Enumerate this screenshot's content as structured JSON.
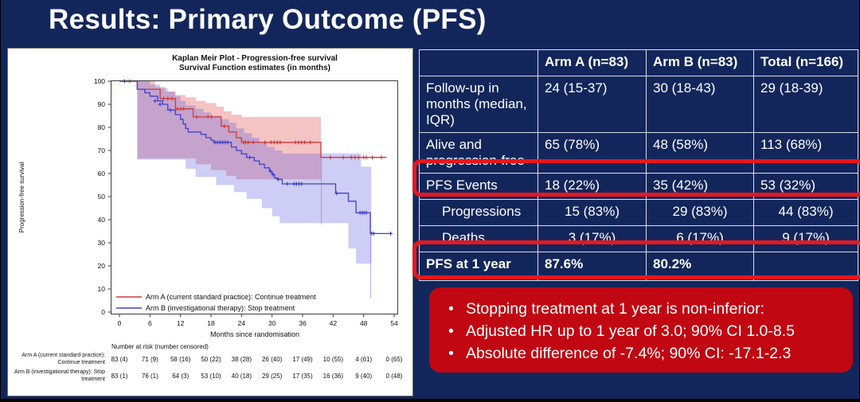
{
  "slide": {
    "title": "Results: Primary Outcome (PFS)"
  },
  "colors": {
    "slide_bg": "#13265b",
    "highlight_red": "#e8161d",
    "callout_bg": "#c00712",
    "table_border": "#d9deea",
    "text": "#ffffff"
  },
  "table": {
    "headers": [
      "",
      "Arm A (n=83)",
      "Arm B (n=83)",
      "Total (n=166)"
    ],
    "rows": [
      {
        "label": "Follow-up in months (median, IQR)",
        "values": [
          "24 (15-37)",
          "30 (18-43)",
          "29 (18-39)"
        ]
      },
      {
        "label": "Alive and progression-free",
        "values": [
          "65 (78%)",
          "48 (58%)",
          "113 (68%)"
        ]
      },
      {
        "label": "PFS Events",
        "values": [
          "18 (22%)",
          "35 (42%)",
          "53 (32%)"
        ]
      },
      {
        "label": "Progressions",
        "values": [
          "15 (83%)",
          "29 (83%)",
          "44 (83%)"
        ]
      },
      {
        "label": "Deaths",
        "values": [
          "3 (17%)",
          "6 (17%)",
          "9 (17%)"
        ]
      },
      {
        "label": "PFS at 1 year",
        "values": [
          "87.6%",
          "80.2%",
          ""
        ]
      }
    ]
  },
  "callout": {
    "bullets": [
      "Stopping treatment at 1 year is non-inferior:",
      "Adjusted HR up to 1 year of 3.0; 90% CI 1.0-8.5",
      "Absolute difference of -7.4%; 90% CI: -17.1-2.3"
    ]
  },
  "chart_data": {
    "type": "line",
    "subtype": "kaplan-meier-step",
    "title_lines": [
      "Kaplan Meir Plot - Progression-free survival",
      "Survival Function estimates (in months)"
    ],
    "xlabel": "Months since randomisation",
    "ylabel": "Progression-free survival",
    "xlim": [
      0,
      54
    ],
    "ylim": [
      0,
      100
    ],
    "xticks": [
      0,
      6,
      12,
      18,
      24,
      30,
      36,
      42,
      48,
      54
    ],
    "yticks": [
      0,
      10,
      20,
      30,
      40,
      50,
      60,
      70,
      80,
      90,
      100
    ],
    "grid": false,
    "legend_position": "inside-bottom-left",
    "series": [
      {
        "id": "arm-a",
        "name": "Arm A (current standard practice): Continue treatment",
        "color": "#cf3a3a",
        "band_color": "#e05a5a",
        "band_opacity": 0.36,
        "start": [
          0,
          100
        ],
        "end_x": 52.5,
        "drops": [
          [
            3.5,
            96.5
          ],
          [
            8,
            92.5
          ],
          [
            11,
            88
          ],
          [
            14.5,
            84.5
          ],
          [
            20,
            80.5
          ],
          [
            21.5,
            78
          ],
          [
            23,
            75.5
          ],
          [
            24,
            73.5
          ],
          [
            39.6,
            67
          ]
        ],
        "censors": [
          [
            2,
            100
          ],
          [
            8.7,
            92.5
          ],
          [
            9.5,
            92.5
          ],
          [
            10.3,
            92.5
          ],
          [
            11.4,
            88
          ],
          [
            12,
            88
          ],
          [
            12.6,
            88
          ],
          [
            15.2,
            84.5
          ],
          [
            17.4,
            84.5
          ],
          [
            18.1,
            84.5
          ],
          [
            20.6,
            80.5
          ],
          [
            24.4,
            73.5
          ],
          [
            24.8,
            73.5
          ],
          [
            25.3,
            73.5
          ],
          [
            26.3,
            73.5
          ],
          [
            28.6,
            73.5
          ],
          [
            29.8,
            73.5
          ],
          [
            30.4,
            73.5
          ],
          [
            31,
            73.5
          ],
          [
            31.6,
            73.5
          ],
          [
            34.6,
            73.5
          ],
          [
            35.2,
            73.5
          ],
          [
            35.8,
            73.5
          ],
          [
            36.4,
            73.5
          ],
          [
            37.5,
            73.5
          ],
          [
            41.5,
            67
          ],
          [
            44,
            67
          ],
          [
            45.6,
            67
          ],
          [
            46.3,
            67
          ],
          [
            47,
            67
          ],
          [
            48,
            67
          ],
          [
            48.5,
            67
          ],
          [
            49.7,
            67
          ],
          [
            51.5,
            67
          ]
        ],
        "band": {
          "upper": [
            [
              3.5,
              100
            ],
            [
              7,
              100
            ],
            [
              7,
              97.5
            ],
            [
              9,
              97.5
            ],
            [
              9,
              95.5
            ],
            [
              11,
              95.5
            ],
            [
              11,
              94
            ],
            [
              13,
              94
            ],
            [
              13,
              93
            ],
            [
              15,
              93
            ],
            [
              15,
              91.5
            ],
            [
              17,
              91.5
            ],
            [
              17,
              90.5
            ],
            [
              19,
              90.5
            ],
            [
              19,
              89
            ],
            [
              20.5,
              89
            ],
            [
              20.5,
              87
            ],
            [
              22,
              87
            ],
            [
              22,
              85.5
            ],
            [
              24,
              85.5
            ],
            [
              24,
              84.5
            ],
            [
              39.6,
              84.5
            ]
          ],
          "lower": [
            [
              3.5,
              66.5
            ],
            [
              15,
              66.5
            ],
            [
              15,
              64
            ],
            [
              18,
              64
            ],
            [
              18,
              61.5
            ],
            [
              21,
              61.5
            ],
            [
              21,
              59
            ],
            [
              23,
              59
            ],
            [
              23,
              57.5
            ],
            [
              39.6,
              57.5
            ]
          ]
        },
        "ci_end": {
          "x": 39.7,
          "from": 67,
          "to": 38
        }
      },
      {
        "id": "arm-b",
        "name": "Arm B (investigational therapy): Stop treatment",
        "color": "#4040cc",
        "band_color": "#5a5ae0",
        "band_opacity": 0.3,
        "start": [
          0,
          100
        ],
        "end_x": 53.5,
        "drops": [
          [
            3.5,
            96.5
          ],
          [
            5,
            95
          ],
          [
            6,
            93.5
          ],
          [
            7.5,
            91.5
          ],
          [
            8.5,
            90
          ],
          [
            9.5,
            87.5
          ],
          [
            11,
            85.5
          ],
          [
            12,
            83.5
          ],
          [
            12.5,
            81.5
          ],
          [
            13,
            79.5
          ],
          [
            13.5,
            78
          ],
          [
            16,
            77
          ],
          [
            17,
            75.5
          ],
          [
            18,
            74.5
          ],
          [
            18.5,
            73.5
          ],
          [
            22,
            71.5
          ],
          [
            23,
            70
          ],
          [
            24,
            68.5
          ],
          [
            25,
            67
          ],
          [
            26.5,
            65.5
          ],
          [
            27.5,
            64
          ],
          [
            28.5,
            62.5
          ],
          [
            29.5,
            61
          ],
          [
            30,
            59.5
          ],
          [
            30.5,
            58
          ],
          [
            31,
            57.5
          ],
          [
            32,
            55.5
          ],
          [
            42.5,
            51.5
          ],
          [
            45,
            48
          ],
          [
            46.5,
            43
          ],
          [
            49.3,
            34
          ]
        ],
        "censors": [
          [
            1,
            100
          ],
          [
            7,
            91.5
          ],
          [
            8,
            90
          ],
          [
            10,
            87.5
          ],
          [
            18.8,
            73.5
          ],
          [
            19.3,
            73.5
          ],
          [
            19.8,
            73.5
          ],
          [
            20.3,
            73.5
          ],
          [
            20.8,
            73.5
          ],
          [
            21.3,
            73.5
          ],
          [
            25.6,
            67
          ],
          [
            29.7,
            61
          ],
          [
            30.2,
            59.5
          ],
          [
            31.2,
            57.5
          ],
          [
            33,
            55.5
          ],
          [
            34.3,
            55.5
          ],
          [
            34.8,
            55.5
          ],
          [
            35.3,
            55.5
          ],
          [
            35.8,
            55.5
          ],
          [
            42.7,
            51.5
          ],
          [
            47.3,
            43
          ],
          [
            47.7,
            43
          ],
          [
            48.1,
            43
          ],
          [
            48.5,
            43
          ],
          [
            49.6,
            34
          ],
          [
            50,
            34
          ],
          [
            53.3,
            34
          ]
        ],
        "band": {
          "upper": [
            [
              3.5,
              100
            ],
            [
              6,
              100
            ],
            [
              6,
              98.5
            ],
            [
              8,
              98.5
            ],
            [
              8,
              97
            ],
            [
              9.5,
              97
            ],
            [
              9.5,
              95.5
            ],
            [
              11,
              95.5
            ],
            [
              11,
              93.5
            ],
            [
              12,
              93.5
            ],
            [
              12,
              91.5
            ],
            [
              13,
              91.5
            ],
            [
              13,
              89.5
            ],
            [
              15,
              89.5
            ],
            [
              15,
              88
            ],
            [
              16.5,
              88
            ],
            [
              16.5,
              86.5
            ],
            [
              18,
              86.5
            ],
            [
              18,
              85
            ],
            [
              20,
              85
            ],
            [
              20,
              83.5
            ],
            [
              21.5,
              83.5
            ],
            [
              21.5,
              82
            ],
            [
              23,
              82
            ],
            [
              23,
              79.5
            ],
            [
              24.5,
              79.5
            ],
            [
              24.5,
              77.5
            ],
            [
              26,
              77.5
            ],
            [
              26,
              75.5
            ],
            [
              27.5,
              75.5
            ],
            [
              27.5,
              73.5
            ],
            [
              29,
              73.5
            ],
            [
              29,
              71.5
            ],
            [
              30.5,
              71.5
            ],
            [
              30.5,
              70
            ],
            [
              32,
              70
            ],
            [
              32,
              68.7
            ],
            [
              47.5,
              68.7
            ],
            [
              47.5,
              63
            ],
            [
              49.5,
              63
            ]
          ],
          "lower": [
            [
              3.5,
              66
            ],
            [
              13,
              66
            ],
            [
              13,
              62
            ],
            [
              15,
              62
            ],
            [
              15,
              58.5
            ],
            [
              19,
              58.5
            ],
            [
              19,
              55
            ],
            [
              22.5,
              55
            ],
            [
              22.5,
              52
            ],
            [
              25,
              52
            ],
            [
              25,
              49
            ],
            [
              28,
              49
            ],
            [
              28,
              45
            ],
            [
              30,
              45
            ],
            [
              30,
              41.5
            ],
            [
              31.5,
              41.5
            ],
            [
              31.5,
              38.5
            ],
            [
              45,
              38.5
            ],
            [
              45,
              27.5
            ],
            [
              46.5,
              27.5
            ],
            [
              46.5,
              21
            ],
            [
              49.5,
              21
            ]
          ]
        },
        "ci_end": {
          "x": 49.4,
          "from": 34,
          "to": 6
        }
      }
    ],
    "risk_table": {
      "header": "Number at risk (number censored)",
      "rows": [
        {
          "label_lines": [
            "Arm A (current standard practice):",
            "Continue treatment"
          ],
          "values": [
            "83 (4)",
            "71 (9)",
            "58 (16)",
            "50 (22)",
            "38 (28)",
            "26 (40)",
            "17 (49)",
            "10 (55)",
            "4 (61)",
            "0 (65)"
          ]
        },
        {
          "label_lines": [
            "Arm B (investigational therapy): Stop",
            "treatment"
          ],
          "values": [
            "83 (1)",
            "76 (1)",
            "64 (3)",
            "53 (10)",
            "40 (18)",
            "29 (25)",
            "17 (35)",
            "16 (36)",
            "9 (40)",
            "0 (48)"
          ]
        }
      ]
    }
  }
}
